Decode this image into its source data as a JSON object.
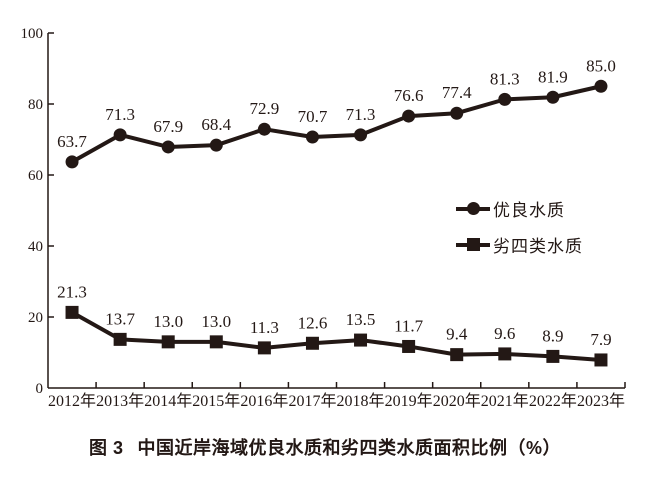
{
  "figure": {
    "caption_prefix": "图 3",
    "caption_title": "中国近岸海域优良水质和劣四类水质面积比例（%）"
  },
  "legend": {
    "items": [
      {
        "label": "优良水质",
        "marker": "circle"
      },
      {
        "label": "劣四类水质",
        "marker": "square"
      }
    ]
  },
  "chart_data": {
    "type": "line",
    "title": "图 3 中国近岸海域优良水质和劣四类水质面积比例（%）",
    "categories": [
      "2012年",
      "2013年",
      "2014年",
      "2015年",
      "2016年",
      "2017年",
      "2018年",
      "2019年",
      "2020年",
      "2021年",
      "2022年",
      "2023年"
    ],
    "series": [
      {
        "name": "优良水质",
        "marker": "circle",
        "values": [
          63.7,
          71.3,
          67.9,
          68.4,
          72.9,
          70.7,
          71.3,
          76.6,
          77.4,
          81.3,
          81.9,
          85.0
        ]
      },
      {
        "name": "劣四类水质",
        "marker": "square",
        "values": [
          21.3,
          13.7,
          13.0,
          13.0,
          11.3,
          12.6,
          13.5,
          11.7,
          9.4,
          9.6,
          8.9,
          7.9
        ]
      }
    ],
    "xlabel": "",
    "ylabel": "",
    "ylim": [
      0,
      100
    ],
    "yticks": [
      0,
      20,
      40,
      60,
      80,
      100
    ],
    "grid": false,
    "data_labels": true,
    "legend_position": "right-middle",
    "line_color": "#231815",
    "background_color": "#ffffff"
  }
}
